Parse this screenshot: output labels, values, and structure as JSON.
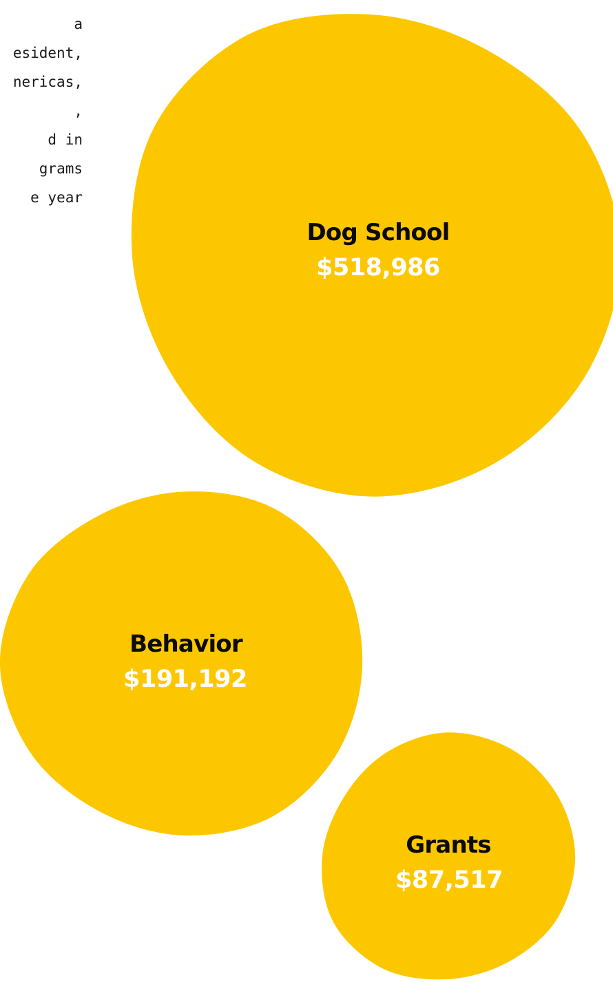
{
  "intro": {
    "paragraph_1": [
      "a",
      "esident,",
      "nericas,",
      ","
    ],
    "paragraph_2": [
      "d in",
      "grams",
      "e year"
    ]
  },
  "chart_data": {
    "type": "bubble",
    "color": "#FDC700",
    "label_color": "#0b0b0b",
    "value_color": "#ffffff",
    "items": [
      {
        "name": "Dog School",
        "value": 518986,
        "display": "$518,986"
      },
      {
        "name": "Behavior",
        "value": 191192,
        "display": "$191,192"
      },
      {
        "name": "Grants",
        "value": 87517,
        "display": "$87,517"
      }
    ]
  }
}
